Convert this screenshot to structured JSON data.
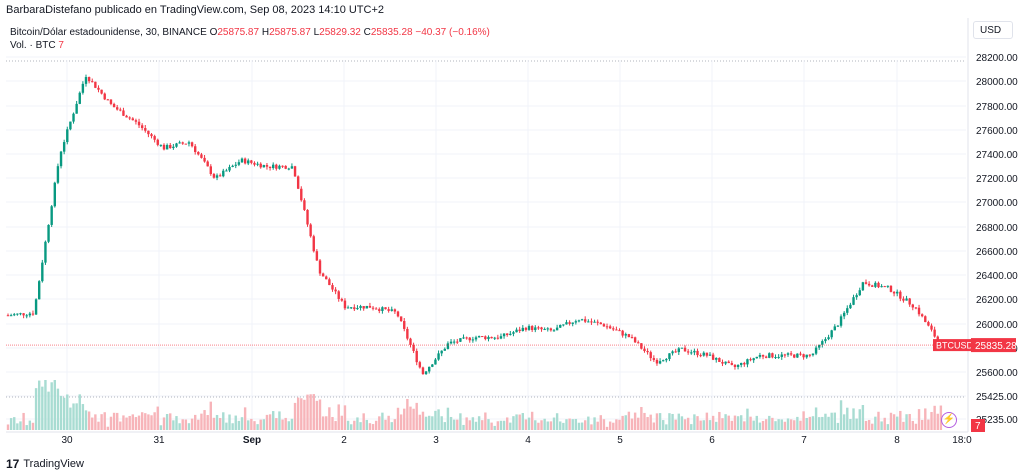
{
  "header": {
    "attribution": "BarbaraDistefano publicado en TradingView.com, Sep 08, 2023 14:10 UTC+2"
  },
  "legend": {
    "symbol": "Bitcoin/Dólar estadounidense, 30, BINANCE",
    "open_label": "O",
    "open": "25875.87",
    "high_label": "H",
    "high": "25875.87",
    "low_label": "L",
    "low": "25829.32",
    "close_label": "C",
    "close": "25835.28",
    "change": "−40.37 (−0.16%)",
    "volume_label": "Vol. · BTC",
    "volume_value": "7"
  },
  "currency_button": "USD",
  "footer": {
    "logo_text": "17",
    "brand": "TradingView"
  },
  "colors": {
    "up": "#089981",
    "down": "#f23645",
    "up_volume": "#a8dcd2",
    "down_volume": "#f7b4b9",
    "grid": "#f0f3fa",
    "price_line": "#f23645"
  },
  "chart_data": {
    "type": "candlestick",
    "symbol": "BTCUSD",
    "interval": "30",
    "y_axis_ticks": [
      "28200.00",
      "28000.00",
      "27800.00",
      "27600.00",
      "27400.00",
      "27200.00",
      "27000.00",
      "26800.00",
      "26600.00",
      "26400.00",
      "26200.00",
      "26000.00",
      "25800.00",
      "25600.00",
      "25425.00",
      "25235.00"
    ],
    "x_axis_ticks": [
      "30",
      "31",
      "Sep",
      "2",
      "3",
      "4",
      "5",
      "6",
      "7",
      "8",
      "18:0"
    ],
    "last_price_label": "BTCUSD",
    "last_price": "25835.28",
    "volume_last": "7",
    "price_path": [
      {
        "x": "Aug 29 12:00",
        "y": 26080
      },
      {
        "x": "Aug 29 18:00",
        "y": 26100
      },
      {
        "x": "Aug 29 20:00",
        "y": 27400
      },
      {
        "x": "Aug 29 22:00",
        "y": 28050
      },
      {
        "x": "Aug 30 00:00",
        "y": 27800
      },
      {
        "x": "Aug 30 04:00",
        "y": 27650
      },
      {
        "x": "Aug 30 12:00",
        "y": 27450
      },
      {
        "x": "Aug 30 20:00",
        "y": 27500
      },
      {
        "x": "Aug 31 00:00",
        "y": 27200
      },
      {
        "x": "Aug 31 06:00",
        "y": 27350
      },
      {
        "x": "Aug 31 12:00",
        "y": 27300
      },
      {
        "x": "Aug 31 18:00",
        "y": 27300
      },
      {
        "x": "Sep 1 00:00",
        "y": 26450
      },
      {
        "x": "Sep 1 06:00",
        "y": 26150
      },
      {
        "x": "Sep 1 12:00",
        "y": 26150
      },
      {
        "x": "Sep 1 18:00",
        "y": 26100
      },
      {
        "x": "Sep 1 22:00",
        "y": 25600
      },
      {
        "x": "Sep 2 00:00",
        "y": 25850
      },
      {
        "x": "Sep 2 12:00",
        "y": 25900
      },
      {
        "x": "Sep 3 00:00",
        "y": 25900
      },
      {
        "x": "Sep 3 12:00",
        "y": 25980
      },
      {
        "x": "Sep 4 00:00",
        "y": 25950
      },
      {
        "x": "Sep 4 12:00",
        "y": 26050
      },
      {
        "x": "Sep 4 18:00",
        "y": 26000
      },
      {
        "x": "Sep 5 00:00",
        "y": 25900
      },
      {
        "x": "Sep 5 12:00",
        "y": 25700
      },
      {
        "x": "Sep 6 00:00",
        "y": 25800
      },
      {
        "x": "Sep 6 12:00",
        "y": 25750
      },
      {
        "x": "Sep 6 18:00",
        "y": 25650
      },
      {
        "x": "Sep 7 00:00",
        "y": 25750
      },
      {
        "x": "Sep 7 12:00",
        "y": 25750
      },
      {
        "x": "Sep 7 18:00",
        "y": 25750
      },
      {
        "x": "Sep 7 22:00",
        "y": 26000
      },
      {
        "x": "Sep 8 00:00",
        "y": 26350
      },
      {
        "x": "Sep 8 06:00",
        "y": 26300
      },
      {
        "x": "Sep 8 12:00",
        "y": 26150
      },
      {
        "x": "Sep 8 14:00",
        "y": 25835
      }
    ],
    "grid": true
  }
}
